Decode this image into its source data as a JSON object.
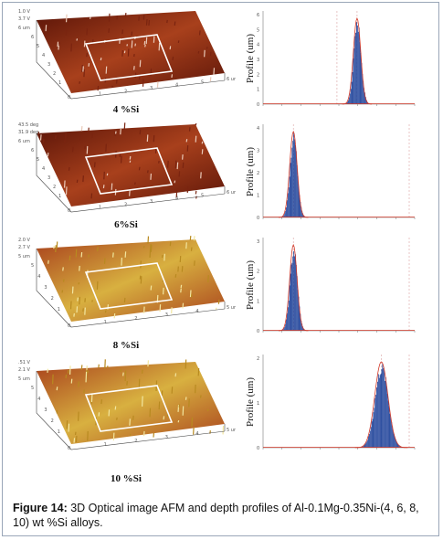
{
  "panels": [
    {
      "label": "4 %Si",
      "hist_label": "Profile (um)",
      "afm_tops": [
        "1.0 V",
        "3.7 V"
      ],
      "afm_side": "6 um",
      "afm_axis": [
        "6",
        "5",
        "4",
        "3",
        "2",
        "1",
        "0",
        "1",
        "2",
        "3",
        "4",
        "5",
        "6 um"
      ],
      "hist_y_ticks": [
        "6",
        "5",
        "4",
        "3",
        "2",
        "1",
        "0"
      ],
      "peak_x": 0.62
    },
    {
      "label": "6%Si",
      "hist_label": "Profile (um)",
      "afm_tops": [
        "43.5 deg",
        "31.9 deg"
      ],
      "afm_side": "6 um",
      "afm_axis": [
        "6",
        "5",
        "4",
        "3",
        "2",
        "1",
        "0",
        "1",
        "2",
        "3",
        "4",
        "5",
        "6 um"
      ],
      "hist_y_ticks": [
        "4",
        "3",
        "2",
        "1",
        "0"
      ],
      "peak_x": 0.2
    },
    {
      "label": "8 %Si",
      "hist_label": "Profile (um)",
      "afm_tops": [
        "2.0 V",
        "2.7 V"
      ],
      "afm_side": "5 um",
      "afm_axis": [
        "5",
        "4",
        "3",
        "2",
        "1",
        "0",
        "1",
        "2",
        "3",
        "4",
        "5 um"
      ],
      "hist_y_ticks": [
        "3",
        "2",
        "1",
        "0"
      ],
      "peak_x": 0.2
    },
    {
      "label": "10 %Si",
      "hist_label": "Profile (um)",
      "afm_tops": [
        ".51 V",
        "2.1 V"
      ],
      "afm_side": "5 um",
      "afm_axis": [
        "5",
        "4",
        "3",
        "2",
        "1",
        "0",
        "1",
        "2",
        "3",
        "4",
        "5 um"
      ],
      "hist_y_ticks": [
        "2",
        "1",
        "0"
      ],
      "peak_x": 0.78
    }
  ],
  "caption": {
    "label": "Figure 14:",
    "text": " 3D Optical image AFM and depth profiles of Al-0.1Mg-0.35Ni-(4, 6, 8, 10) wt %Si alloys."
  },
  "colors": {
    "afm_dark": "#5a1408",
    "afm_mid": "#a8401c",
    "afm_light": "#d8b040",
    "hist_fill": "#2e4fa0",
    "hist_curve": "#d23a2a"
  }
}
